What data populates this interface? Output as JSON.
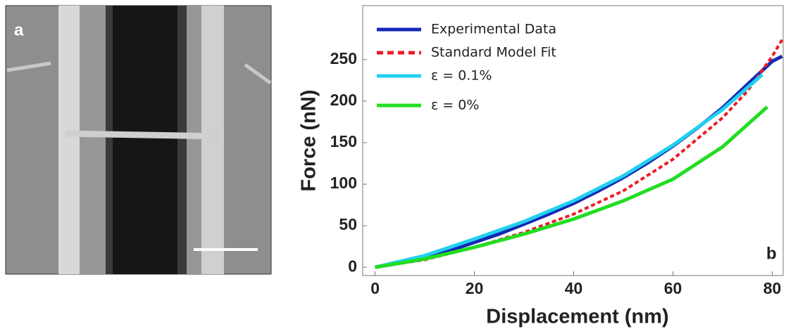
{
  "panel_a": {
    "label": "a"
  },
  "chart_data": {
    "type": "line",
    "x_label": "Displacement (nm)",
    "y_label": "Force (nN)",
    "annotation": "b",
    "xlim": [
      -2.5,
      82.2
    ],
    "ylim": [
      -10,
      315
    ],
    "xticks": [
      0,
      20,
      40,
      60,
      80
    ],
    "yticks": [
      0,
      50,
      100,
      150,
      200,
      250
    ],
    "grid": false,
    "series": [
      {
        "name": "Experimental Data",
        "color": "#1428b4",
        "dashed": false,
        "x": [
          0,
          5,
          10,
          15,
          20,
          25,
          30,
          35,
          40,
          45,
          50,
          55,
          60,
          65,
          70,
          75,
          80,
          82
        ],
        "values": [
          0,
          5,
          12,
          20,
          30,
          40,
          52,
          64,
          77,
          92,
          108,
          126,
          146,
          168,
          192,
          220,
          248,
          254
        ]
      },
      {
        "name": "Standard Model Fit",
        "color": "#ee1c24",
        "dashed": true,
        "x": [
          0,
          10,
          20,
          30,
          40,
          50,
          60,
          70,
          75,
          80,
          82
        ],
        "values": [
          0,
          9,
          24,
          42,
          64,
          92,
          130,
          180,
          212,
          254,
          274
        ]
      },
      {
        "name": "ε = 0.1%",
        "color": "#22d0f0",
        "dashed": false,
        "x": [
          0,
          10,
          20,
          30,
          40,
          50,
          60,
          70,
          78
        ],
        "values": [
          0,
          14,
          34,
          55,
          80,
          110,
          147,
          190,
          232
        ]
      },
      {
        "name": "ε = 0%",
        "color": "#22dd22",
        "dashed": false,
        "x": [
          0,
          10,
          20,
          30,
          40,
          50,
          60,
          70,
          79
        ],
        "values": [
          0,
          10,
          24,
          40,
          58,
          80,
          106,
          145,
          193
        ]
      }
    ]
  }
}
